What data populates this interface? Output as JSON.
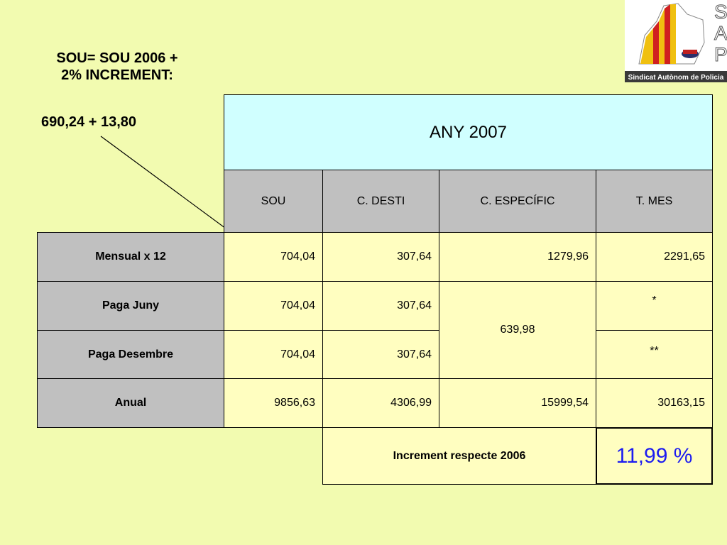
{
  "notes": {
    "formula_line1": "SOU= SOU 2006 +",
    "formula_line2": "2% INCREMENT:",
    "calc": "690,24 + 13,80"
  },
  "logo": {
    "letters": [
      "S",
      "A",
      "P"
    ],
    "caption": "Sindicat Autònom de Policia"
  },
  "table": {
    "title": "ANY 2007",
    "headers": [
      "SOU",
      "C. DESTI",
      "C. ESPECÍFIC",
      "T. MES"
    ],
    "rows": [
      {
        "label": "Mensual x 12",
        "sou": "704,04",
        "desti": "307,64",
        "especific": "1279,96",
        "tmes": "2291,65"
      },
      {
        "label": "Paga Juny",
        "sou": "704,04",
        "desti": "307,64",
        "especific": "639,98",
        "tmes": "*"
      },
      {
        "label": "Paga Desembre",
        "sou": "704,04",
        "desti": "307,64",
        "tmes": "**"
      },
      {
        "label": "Anual",
        "sou": "9856,63",
        "desti": "4306,99",
        "especific": "15999,54",
        "tmes": "30163,15"
      }
    ],
    "increment_label": "Increment respecte 2006",
    "increment_value": "11,99 %"
  },
  "colors": {
    "background": "#f2fbb0",
    "header_gray": "#c0c0c0",
    "title_cyan": "#d0ffff",
    "cell_yellow": "#fffec0",
    "increment_blue": "#1c1cf0"
  }
}
